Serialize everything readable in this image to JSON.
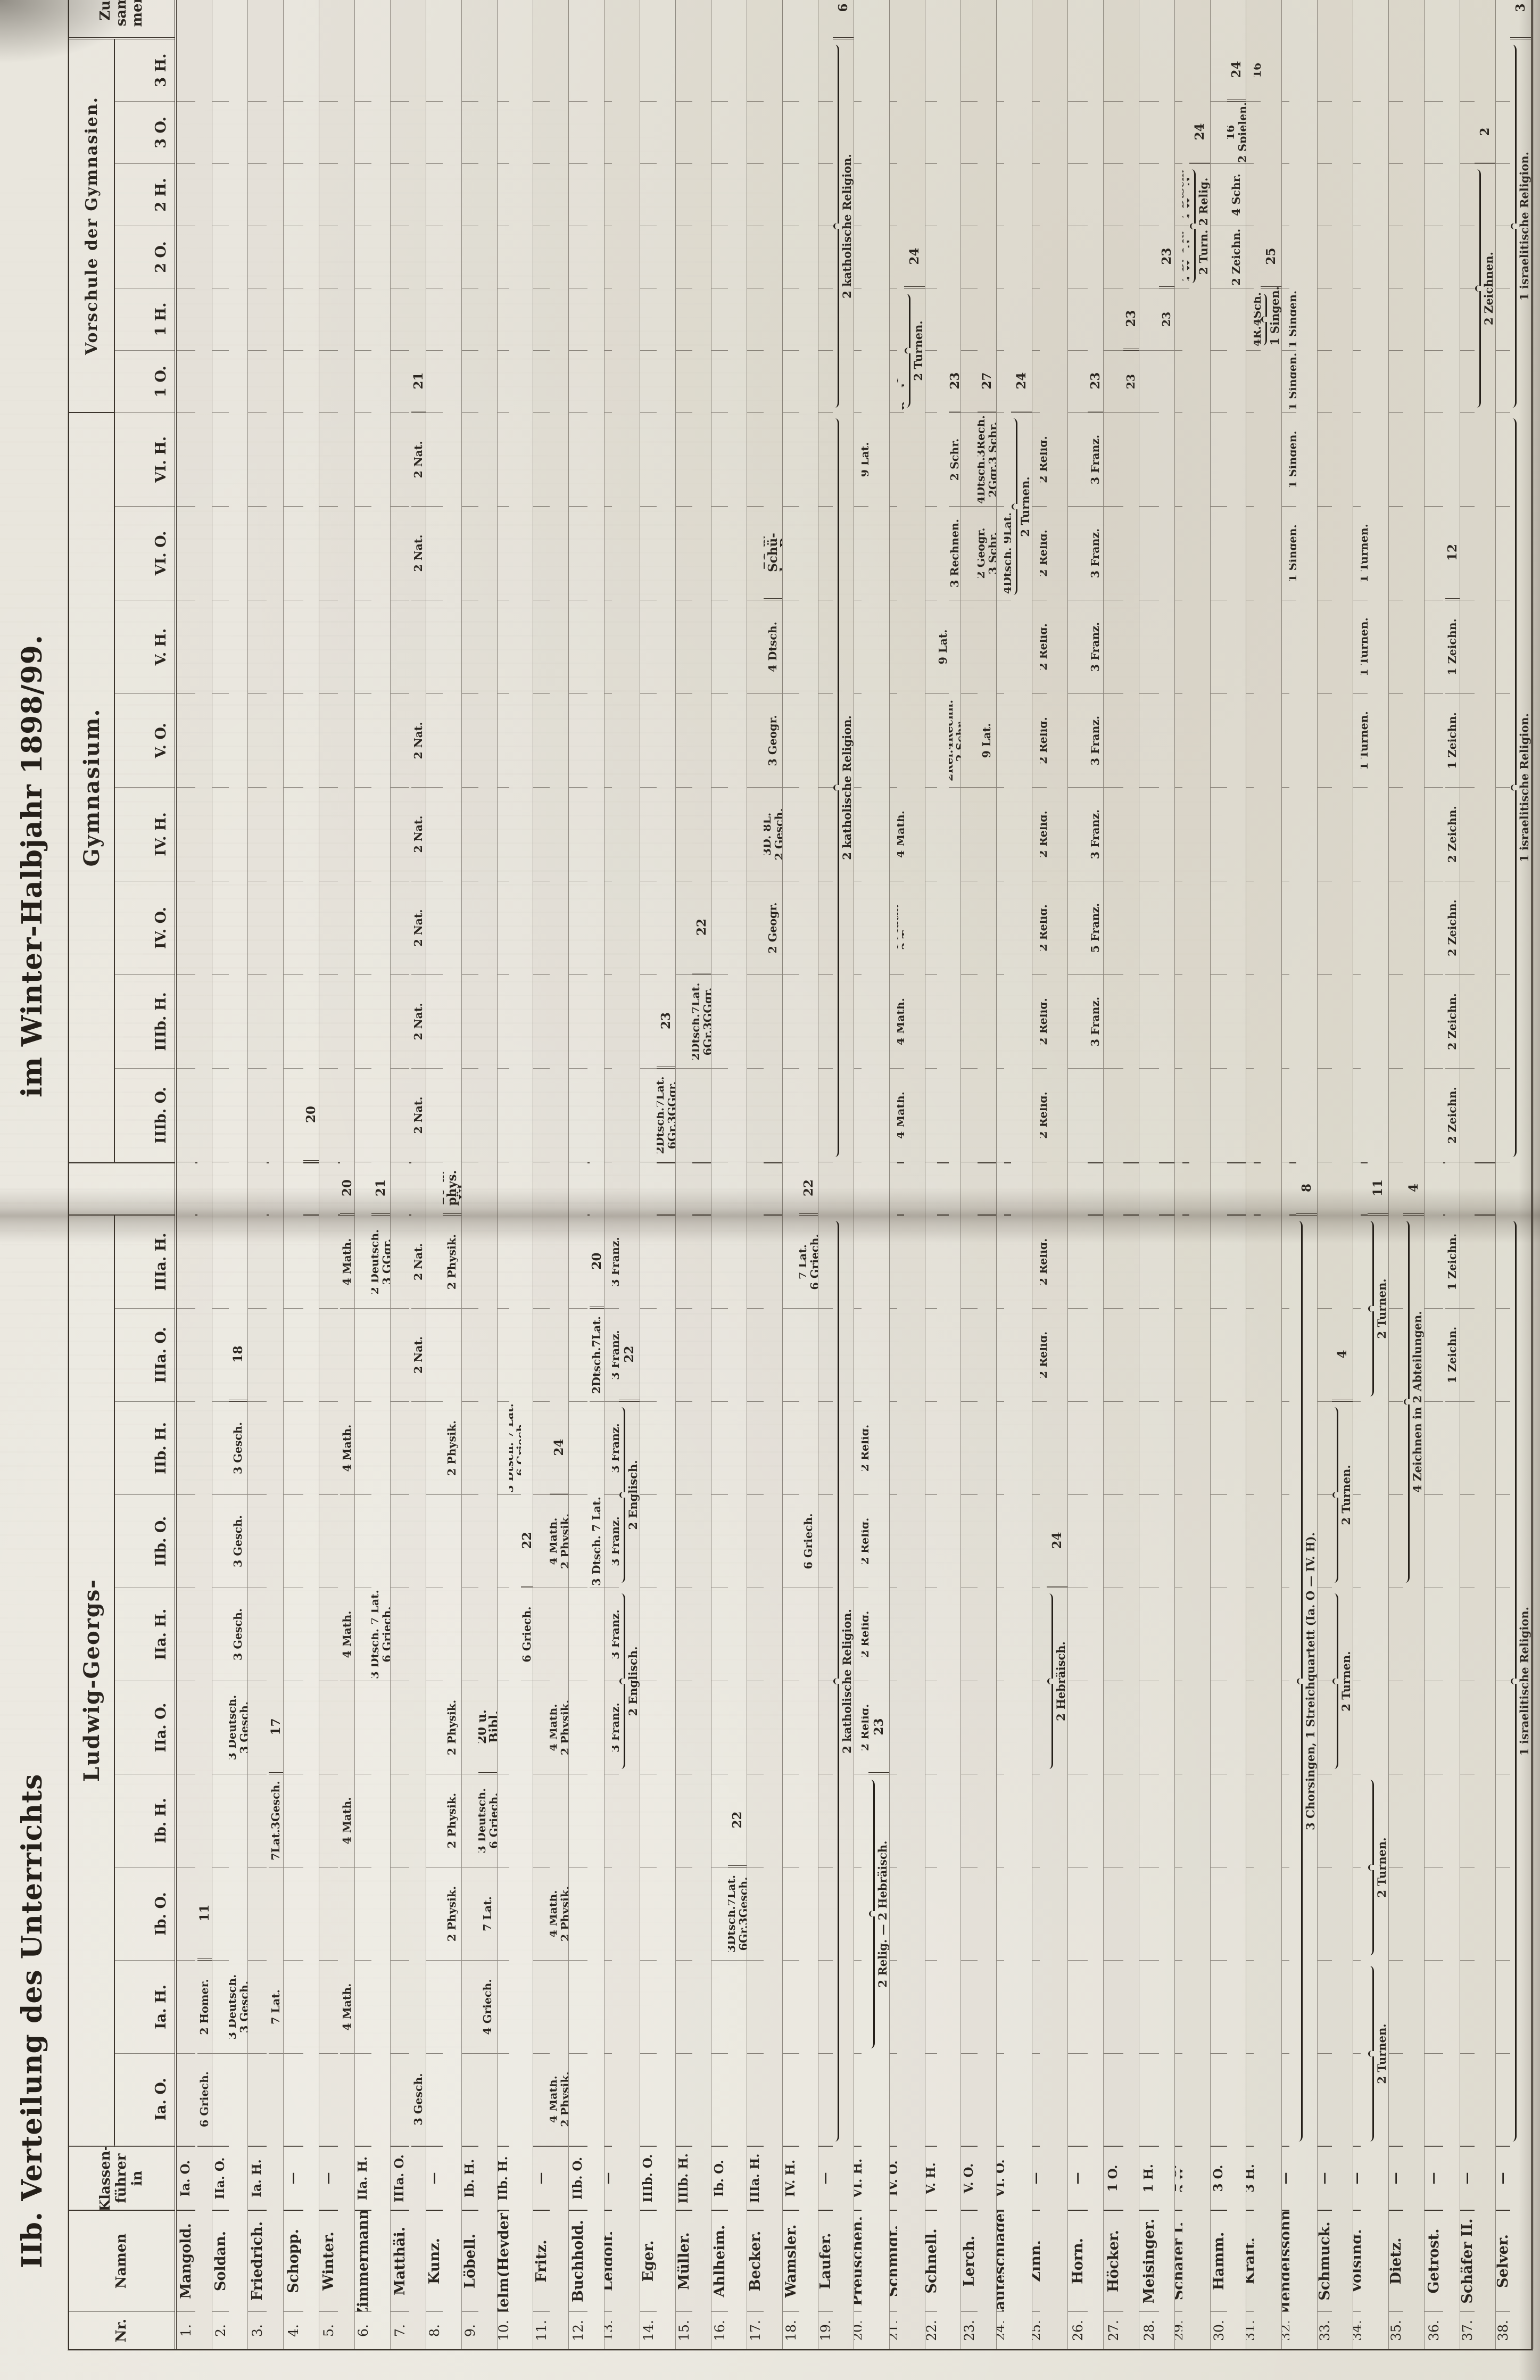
{
  "document": {
    "title_left": "IIb. Verteilung des Unterrichts",
    "title_right": "im Winter-Halbjahr 1898/99.",
    "school_group_left": "Ludwig-Georgs-",
    "school_group_right": "Gymnasium.",
    "school_group_vorschule": "Vorschule der Gymnasien.",
    "header_nr": "Nr.",
    "header_namen": "Namen",
    "header_klassenfuehrer": "Klassen-\nführer\nin",
    "header_zusammen": "Zu-\nsam-\nmen."
  },
  "class_columns": [
    {
      "key": "IaO",
      "label": "Ia. O."
    },
    {
      "key": "IaH",
      "label": "Ia. H."
    },
    {
      "key": "IbO",
      "label": "Ib. O."
    },
    {
      "key": "IbH",
      "label": "Ib. H."
    },
    {
      "key": "IIaO",
      "label": "IIa. O."
    },
    {
      "key": "IIaH",
      "label": "IIa. H."
    },
    {
      "key": "IIbO",
      "label": "IIb. O."
    },
    {
      "key": "IIbH",
      "label": "IIb. H."
    },
    {
      "key": "IIIaO",
      "label": "IIIa. O."
    },
    {
      "key": "IIIaH",
      "label": "IIIa. H."
    },
    {
      "key": "IIIbO",
      "label": "IIIb. O."
    },
    {
      "key": "IIIbH",
      "label": "IIIb. H."
    },
    {
      "key": "IVO",
      "label": "IV. O."
    },
    {
      "key": "IVH",
      "label": "IV. H."
    },
    {
      "key": "VO",
      "label": "V. O."
    },
    {
      "key": "VH",
      "label": "V. H."
    },
    {
      "key": "VIO",
      "label": "VI. O."
    },
    {
      "key": "VIH",
      "label": "VI. H."
    },
    {
      "key": "v1O",
      "label": "1 O."
    },
    {
      "key": "v1H",
      "label": "1 H."
    },
    {
      "key": "v2O",
      "label": "2 O."
    },
    {
      "key": "v2H",
      "label": "2 H."
    },
    {
      "key": "v3O",
      "label": "3 O."
    },
    {
      "key": "v3H",
      "label": "3 H."
    }
  ],
  "rows": [
    {
      "nr": "1.",
      "name": "Mangold.",
      "kf": "Ia. O.",
      "zus": "11",
      "cells": {
        "IaO": "6 Griech.",
        "IaH": "2 Homer."
      },
      "braces": []
    },
    {
      "nr": "2.",
      "name": "Soldan.",
      "kf": "IIa. O.",
      "zus": "18",
      "cells": {
        "IaH": "3 Deutsch.\n3 Gesch.",
        "IIaO": "3 Deutsch.\n3 Gesch.",
        "IIaH": "3 Gesch.",
        "IIbO": "3 Gesch.",
        "IIbH": "3 Gesch."
      },
      "braces": []
    },
    {
      "nr": "3.",
      "name": "Friedrich.",
      "kf": "Ia. H.",
      "zus": "17",
      "cells": {
        "IaH": "7 Lat.",
        "IbH": "7Lat.3Gesch."
      },
      "braces": []
    },
    {
      "nr": "4.",
      "name": "Schopp.",
      "kf": "—",
      "zus": "20",
      "cells": {},
      "braces": []
    },
    {
      "nr": "5.",
      "name": "Winter.",
      "kf": "—",
      "zus": "20",
      "cells": {
        "IaH": "4 Math.",
        "IbH": "4 Math.",
        "IIaH": "4 Math.",
        "IIbH": "4 Math.",
        "IIIaH": "4 Math."
      },
      "braces": []
    },
    {
      "nr": "6.",
      "name": "Zimmermann.",
      "kf": "IIa. H.",
      "zus": "21",
      "cells": {
        "IIaH": "3 Dtsch. 7 Lat.\n6 Griech.",
        "IIIaH": "2 Deutsch.\n3 GGgr."
      },
      "braces": []
    },
    {
      "nr": "7.",
      "name": "Matthäi.",
      "kf": "IIIa. O.",
      "zus": "21",
      "cells": {
        "IaO": "3 Gesch.",
        "IIIaO": "2 Nat.",
        "IIIaH": "2 Nat.",
        "IIIbO": "2 Nat.",
        "IIIbH": "2 Nat.",
        "IVO": "2 Nat.",
        "IVH": "2 Nat.",
        "VO": "2 Nat.",
        "VIO": "2 Nat.",
        "VIH": "2 Nat."
      },
      "braces": []
    },
    {
      "nr": "8.",
      "name": "Kunz.",
      "kf": "—",
      "zus": "20 u.\nphys.\nÜb.",
      "cells": {
        "IbO": "2 Physik.",
        "IbH": "2 Physik.",
        "IIaO": "2 Physik.",
        "IIbH": "2 Physik.",
        "IIIaH": "2 Physik."
      },
      "braces": []
    },
    {
      "nr": "9.",
      "name": "Löbell.",
      "kf": "Ib. H.",
      "zus": "20 u.\nBibl.",
      "cells": {
        "IaH": "4 Griech.",
        "IbO": "7 Lat.",
        "IbH": "3 Deutsch.\n6 Griech."
      },
      "braces": []
    },
    {
      "nr": "10.",
      "name": "Helm(Heyder).",
      "kf": "IIb. H.",
      "zus": "22",
      "cells": {
        "IIbH": "3 Dtsch. 7 Lat.\n6 Griech.",
        "IIaH": "6 Griech."
      },
      "braces": []
    },
    {
      "nr": "11.",
      "name": "Fritz.",
      "kf": "—",
      "zus": "24",
      "cells": {
        "IaO": "4 Math.\n2 Physik.",
        "IbO": "4 Math.\n2 Physik.",
        "IIaO": "4 Math.\n2 Physik.",
        "IIbO": "4 Math.\n2 Physik."
      },
      "braces": []
    },
    {
      "nr": "12.",
      "name": "Buchhold.",
      "kf": "IIb. O.",
      "zus": "20",
      "cells": {
        "IIbO": "3 Dtsch. 7 Lat.",
        "IIIaO": "2Dtsch.7Lat."
      },
      "braces": []
    },
    {
      "nr": "13.",
      "name": "Leidolf.",
      "kf": "—",
      "zus": "22",
      "cells": {
        "IIaO": "3 Franz.",
        "IIaH": "3 Franz.",
        "IIbO": "3 Franz.",
        "IIbH": "3 Franz.",
        "IIIaO": "3 Franz.",
        "IIIaH": "3 Franz."
      },
      "braces": [
        {
          "from": "IIaO",
          "to": "IIaH",
          "label": "2 Englisch."
        },
        {
          "from": "IIbO",
          "to": "IIbH",
          "label": "2 Englisch."
        }
      ]
    },
    {
      "nr": "14.",
      "name": "Eger.",
      "kf": "IIIb. O.",
      "zus": "23",
      "cells": {
        "IIIbO": "2Dtsch.7Lat.\n6Gr.3GGgr."
      },
      "braces": []
    },
    {
      "nr": "15.",
      "name": "Müller.",
      "kf": "IIIb. H.",
      "zus": "22",
      "cells": {
        "IIIbH": "2Dtsch.7Lat.\n6Gr.3GGgr."
      },
      "braces": []
    },
    {
      "nr": "16.",
      "name": "Ahlheim.",
      "kf": "Ib. O.",
      "zus": "22",
      "cells": {
        "IbO": "3Dtsch.7Lat.\n6Gr.3Gesch."
      },
      "braces": []
    },
    {
      "nr": "17.",
      "name": "Becker.",
      "kf": "IIIa. H.",
      "zus": "21 u.\nSchü-\nler-B.",
      "cells": {
        "IVO": "2 Geogr.",
        "IVH": "3D. 8L.\n2 Gesch.",
        "VO": "3 Geogr.",
        "VH": "4 Dtsch."
      },
      "braces": []
    },
    {
      "nr": "18.",
      "name": "Wamsler.",
      "kf": "IV. H.",
      "zus": "22",
      "cells": {
        "IIbO": "6 Griech.",
        "IIIaH": "7 Lat.\n6 Griech."
      },
      "braces": []
    },
    {
      "nr": "19.",
      "name": "Laufer.",
      "kf": "—",
      "zus": "6",
      "cells": {},
      "braces": [
        {
          "from": "IaO",
          "to": "IIIaH",
          "label": "2 katholische Religion."
        },
        {
          "from": "IIIbO",
          "to": "VIH",
          "label": "2 katholische Religion."
        },
        {
          "from": "v1O",
          "to": "v3H",
          "label": "2 katholische Religion."
        }
      ]
    },
    {
      "nr": "20.",
      "name": "Preuschen.",
      "kf": "VI. H.",
      "zus": "23",
      "cells": {
        "IIaO": "2 Relig.",
        "IIaH": "2 Relig.",
        "IIbO": "2 Relig.",
        "IIbH": "2 Relig.",
        "VIH": "9 Lat."
      },
      "braces": [
        {
          "from": "IaH",
          "to": "IbH",
          "label": "2 Relig.  —  2 Hebräisch."
        }
      ]
    },
    {
      "nr": "21.",
      "name": "Schmidt.",
      "kf": "IV. O.",
      "zus": "24",
      "cells": {
        "IIIbO": "4 Math.",
        "IIIbH": "4 Math.",
        "IVO": "4 Math.\n2 Turn.",
        "IVH": "4 Math.",
        "v1O": "4 Rechnen."
      },
      "braces": [
        {
          "from": "v1O",
          "to": "v1H",
          "label": "2 Turnen."
        }
      ]
    },
    {
      "nr": "22.",
      "name": "Schnell.",
      "kf": "V. H.",
      "zus": "23",
      "cells": {
        "VH": "9 Lat.",
        "VO": "2Rel.4Rechn.\n2 Schr.",
        "VIO": "3 Rechnen.",
        "VIH": "2 Schr."
      },
      "braces": []
    },
    {
      "nr": "23.",
      "name": "Lerch.",
      "kf": "V. O.",
      "zus": "27",
      "cells": {
        "VO": "9 Lat.",
        "VIO": "2 Geogr.\n3 Schr.",
        "VIH": "4Dtsch.3Rech.\n2Ggr.3 Schr."
      },
      "braces": []
    },
    {
      "nr": "24.",
      "name": "Lauteschläger.",
      "kf": "VI. O.",
      "zus": "24",
      "cells": {
        "VIO": "4Dtsch. 9Lat."
      },
      "braces": [
        {
          "from": "VIO",
          "to": "VIH",
          "label": "2 Turnen."
        }
      ]
    },
    {
      "nr": "25.",
      "name": "Zinn.",
      "kf": "—",
      "zus": "24",
      "cells": {
        "IIIaO": "2 Relig.",
        "IIIaH": "2 Relig.",
        "IIIbO": "2 Relig.",
        "IIIbH": "2 Relig.",
        "IVO": "2 Relig.",
        "IVH": "2 Relig.",
        "VO": "2 Relig.",
        "VH": "2 Relig.",
        "VIO": "2 Relig.",
        "VIH": "2 Relig."
      },
      "braces": [
        {
          "from": "IIaO",
          "to": "IIaH",
          "label": "2 Hebräisch."
        }
      ]
    },
    {
      "nr": "26.",
      "name": "Horn.",
      "kf": "—",
      "zus": "23",
      "cells": {
        "IIIbH": "3 Franz.",
        "IVO": "5 Franz.",
        "IVH": "3 Franz.",
        "VO": "3 Franz.",
        "VH": "3 Franz.",
        "VIO": "3 Franz.",
        "VIH": "3 Franz."
      },
      "braces": []
    },
    {
      "nr": "27.",
      "name": "Höcker.",
      "kf": "1 O.",
      "zus": "23",
      "cells": {
        "v1O": "23"
      },
      "braces": []
    },
    {
      "nr": "28.",
      "name": "Meisinger.",
      "kf": "1 H.",
      "zus": "23",
      "cells": {
        "v1H": "23"
      },
      "braces": []
    },
    {
      "nr": "29.",
      "name": "Schäfer I.",
      "kf": "2 O.\n2 H.",
      "zus": "24",
      "cells": {
        "v2O": "7 D. 4 R.\n1 Hmtk.",
        "v2H": "7 Dtsch.\n1 Hmtk."
      },
      "braces": [
        {
          "from": "v2O",
          "to": "v2H",
          "label": "2 Turn. 2 Relig."
        }
      ]
    },
    {
      "nr": "30.",
      "name": "Hamm.",
      "kf": "3 O.",
      "zus": "24",
      "cells": {
        "v2O": "2 Zeichn.",
        "v2H": "4 Schr.",
        "v3O": "16\n2 Spielen."
      },
      "braces": []
    },
    {
      "nr": "31.",
      "name": "Kraft.",
      "kf": "3 H.",
      "zus": "25",
      "cells": {
        "v1H": "4R.4Sch.",
        "v3H": "16"
      },
      "braces": [
        {
          "from": "v1H",
          "to": "v1O",
          "label": "1 Singen."
        }
      ]
    },
    {
      "nr": "32.",
      "name": "Mendelssohn.",
      "kf": "—",
      "zus": "8",
      "cells": {
        "VIO": "1 Singen.",
        "VIH": "1 Singen.",
        "v1O": "1 Singen.",
        "v1H": "1 Singen."
      },
      "braces": [
        {
          "from": "IaO",
          "to": "IIIaH",
          "label": "3 Chorsingen, 1 Streichquartett (Ia. O — IV. H)."
        }
      ]
    },
    {
      "nr": "33.",
      "name": "Schmuck.",
      "kf": "—",
      "zus": "4",
      "cells": {},
      "braces": [
        {
          "from": "IIaO",
          "to": "IIaH",
          "label": "2 Turnen."
        },
        {
          "from": "IIbO",
          "to": "IIbH",
          "label": "2 Turnen."
        }
      ]
    },
    {
      "nr": "34.",
      "name": "Völsing.",
      "kf": "—",
      "zus": "11",
      "cells": {
        "VO": "1 Turnen.",
        "VH": "1 Turnen.",
        "VIO": "1 Turnen."
      },
      "braces": [
        {
          "from": "IaO",
          "to": "IaH",
          "label": "2 Turnen."
        },
        {
          "from": "IbO",
          "to": "IbH",
          "label": "2 Turnen."
        },
        {
          "from": "IIIaO",
          "to": "IIIaH",
          "label": "2 Turnen."
        }
      ]
    },
    {
      "nr": "35.",
      "name": "Dietz.",
      "kf": "—",
      "zus": "4",
      "cells": {},
      "braces": [
        {
          "from": "IIbO",
          "to": "IIIaH",
          "label": "4 Zeichnen in 2 Abteilungen."
        }
      ]
    },
    {
      "nr": "36.",
      "name": "Getrost.",
      "kf": "—",
      "zus": "12",
      "cells": {
        "IIIaO": "1 Zeichn.",
        "IIIaH": "1 Zeichn.",
        "IIIbO": "2 Zeichn.",
        "IIIbH": "2 Zeichn.",
        "IVO": "2 Zeichn.",
        "IVH": "2 Zeichn.",
        "VO": "1 Zeichn.",
        "VH": "1 Zeichn."
      },
      "braces": []
    },
    {
      "nr": "37.",
      "name": "Schäfer II.",
      "kf": "—",
      "zus": "2",
      "cells": {},
      "braces": [
        {
          "from": "v1O",
          "to": "v2H",
          "label": "2 Zeichnen."
        }
      ]
    },
    {
      "nr": "38.",
      "name": "Selver.",
      "kf": "—",
      "zus": "3",
      "cells": {},
      "braces": [
        {
          "from": "IaO",
          "to": "IIIaH",
          "label": "1 israelitische Religion."
        },
        {
          "from": "IIIbO",
          "to": "VIH",
          "label": "1 israelitische Religion."
        },
        {
          "from": "v1O",
          "to": "v3H",
          "label": "1 israelitische Religion."
        }
      ]
    }
  ]
}
